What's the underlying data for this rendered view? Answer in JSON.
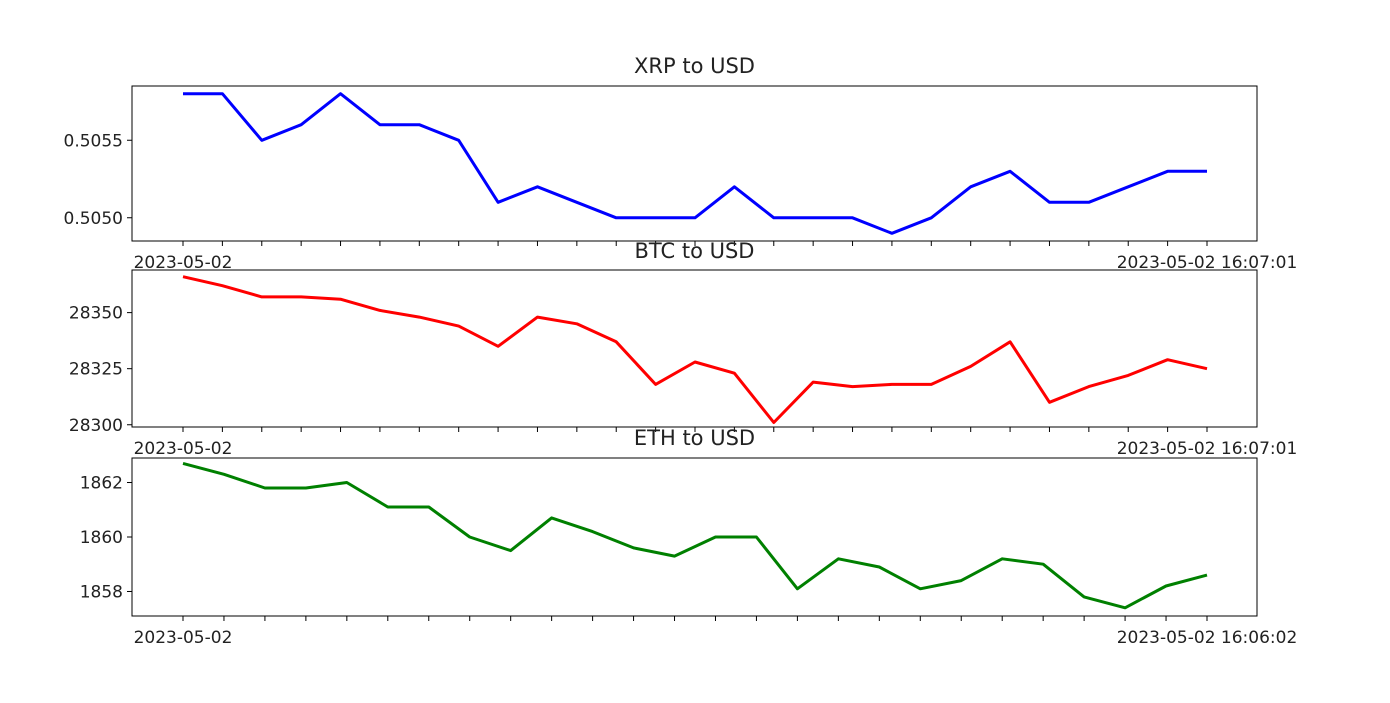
{
  "chart_data": [
    {
      "type": "line",
      "title": "XRP to USD",
      "color": "#0000ff",
      "ylim": [
        0.50485,
        0.50585
      ],
      "yticks": [
        0.505,
        0.5055
      ],
      "ytick_labels": [
        "0.5050",
        "0.5055"
      ],
      "x_first_label": "2023-05-02",
      "x_last_label": "2023-05-02 16:07:01",
      "series": [
        {
          "values": [
            0.5058,
            0.5058,
            0.5055,
            0.5056,
            0.5058,
            0.5056,
            0.5056,
            0.5055,
            0.5051,
            0.5052,
            0.5051,
            0.505,
            0.505,
            0.505,
            0.5052,
            0.505,
            0.505,
            0.505,
            0.5049,
            0.505,
            0.5052,
            0.5053,
            0.5051,
            0.5051,
            0.5052,
            0.5053,
            0.5053
          ]
        }
      ]
    },
    {
      "type": "line",
      "title": "BTC to USD",
      "color": "#ff0000",
      "ylim": [
        28299,
        28369
      ],
      "yticks": [
        28300,
        28325,
        28350
      ],
      "ytick_labels": [
        "28300",
        "28325",
        "28350"
      ],
      "x_first_label": "2023-05-02",
      "x_last_label": "2023-05-02 16:07:01",
      "series": [
        {
          "values": [
            28366,
            28362,
            28357,
            28357,
            28356,
            28351,
            28348,
            28344,
            28335,
            28348,
            28345,
            28337,
            28318,
            28328,
            28323,
            28301,
            28319,
            28317,
            28318,
            28318,
            28326,
            28337,
            28310,
            28317,
            28322,
            28329,
            28325
          ]
        }
      ]
    },
    {
      "type": "line",
      "title": "ETH to USD",
      "color": "#008000",
      "ylim": [
        1857.1,
        1862.9
      ],
      "yticks": [
        1858,
        1860,
        1862
      ],
      "ytick_labels": [
        "1858",
        "1860",
        "1862"
      ],
      "x_first_label": "2023-05-02",
      "x_last_label": "2023-05-02 16:06:02",
      "series": [
        {
          "values": [
            1862.7,
            1862.3,
            1861.8,
            1861.8,
            1862.0,
            1861.1,
            1861.1,
            1860.0,
            1859.5,
            1860.7,
            1860.2,
            1859.6,
            1859.3,
            1860.0,
            1860.0,
            1858.1,
            1859.2,
            1858.9,
            1858.1,
            1858.4,
            1859.2,
            1859.0,
            1857.8,
            1857.4,
            1858.2,
            1858.6
          ]
        }
      ]
    }
  ]
}
